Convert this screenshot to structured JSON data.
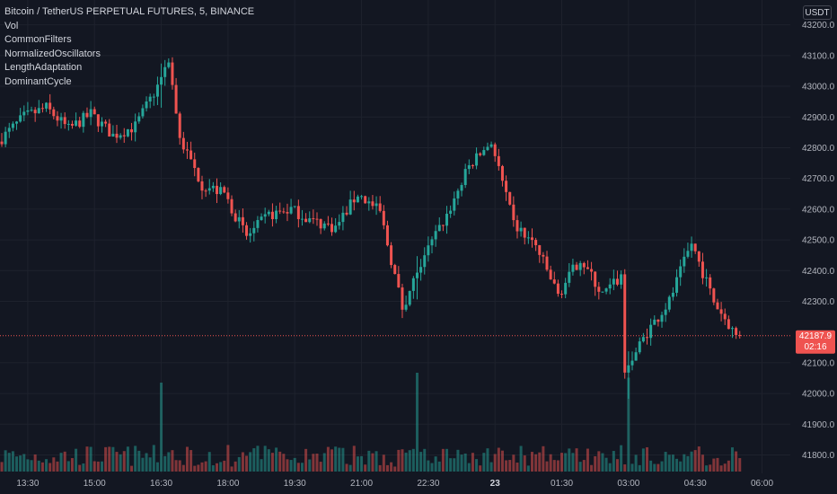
{
  "legend": {
    "symbol_line": "Bitcoin / TetherUS PERPETUAL FUTURES, 5, BINANCE",
    "indicators": [
      "Vol",
      "CommonFilters",
      "NormalizedOscillators",
      "LengthAdaptation",
      "DominantCycle"
    ]
  },
  "currency_button": "USDT",
  "colors": {
    "background": "#131722",
    "up": "#26a69a",
    "down": "#ef5350",
    "grid": "#1e222d",
    "text": "#b2b5be"
  },
  "price_axis": {
    "ticks": [
      "43200.0",
      "43100.0",
      "43000.0",
      "42900.0",
      "42800.0",
      "42700.0",
      "42600.0",
      "42500.0",
      "42400.0",
      "42300.0",
      "42100.0",
      "42000.0",
      "41900.0",
      "41800.0"
    ],
    "tick_values": [
      43200,
      43100,
      43000,
      42900,
      42800,
      42700,
      42600,
      42500,
      42400,
      42300,
      42100,
      42000,
      41900,
      41800
    ]
  },
  "last_price": {
    "price": "42187.9",
    "countdown": "02:16",
    "value": 42187.9
  },
  "time_axis": {
    "labels": [
      "13:30",
      "15:00",
      "16:30",
      "18:00",
      "19:30",
      "21:00",
      "22:30",
      "23",
      "01:30",
      "03:00",
      "04:30",
      "06:00"
    ],
    "bold_labels": [
      "23"
    ]
  },
  "chart_data": {
    "type": "candlestick",
    "title": "Bitcoin / TetherUS PERPETUAL FUTURES, 5, BINANCE",
    "ylim": [
      41740,
      43275
    ],
    "interval_minutes": 5,
    "grid": true,
    "waypoints": [
      {
        "time": "12:55",
        "price": 42820
      },
      {
        "time": "13:30",
        "price": 42900
      },
      {
        "time": "14:00",
        "price": 42930
      },
      {
        "time": "14:30",
        "price": 42860
      },
      {
        "time": "15:00",
        "price": 42910
      },
      {
        "time": "15:30",
        "price": 42840
      },
      {
        "time": "16:00",
        "price": 42870
      },
      {
        "time": "16:30",
        "price": 43000
      },
      {
        "time": "16:45",
        "price": 43090
      },
      {
        "time": "17:00",
        "price": 42830
      },
      {
        "time": "17:30",
        "price": 42680
      },
      {
        "time": "18:00",
        "price": 42650
      },
      {
        "time": "18:30",
        "price": 42510
      },
      {
        "time": "19:00",
        "price": 42580
      },
      {
        "time": "19:30",
        "price": 42600
      },
      {
        "time": "20:00",
        "price": 42560
      },
      {
        "time": "20:30",
        "price": 42540
      },
      {
        "time": "21:00",
        "price": 42650
      },
      {
        "time": "21:30",
        "price": 42590
      },
      {
        "time": "22:00",
        "price": 42280
      },
      {
        "time": "22:30",
        "price": 42450
      },
      {
        "time": "23:00",
        "price": 42580
      },
      {
        "time": "23:30",
        "price": 42740
      },
      {
        "time": "00:00",
        "price": 42820
      },
      {
        "time": "00:30",
        "price": 42550
      },
      {
        "time": "01:00",
        "price": 42480
      },
      {
        "time": "01:30",
        "price": 42320
      },
      {
        "time": "02:00",
        "price": 42440
      },
      {
        "time": "02:30",
        "price": 42320
      },
      {
        "time": "02:55",
        "price": 42380
      },
      {
        "time": "03:00",
        "price": 42070
      },
      {
        "time": "03:30",
        "price": 42200
      },
      {
        "time": "04:00",
        "price": 42300
      },
      {
        "time": "04:30",
        "price": 42490
      },
      {
        "time": "05:00",
        "price": 42300
      },
      {
        "time": "05:30",
        "price": 42188
      }
    ],
    "volume_spikes": [
      {
        "time": "16:30",
        "relative": 0.9
      },
      {
        "time": "22:15",
        "relative": 1.0
      },
      {
        "time": "03:00",
        "relative": 0.95
      }
    ]
  }
}
